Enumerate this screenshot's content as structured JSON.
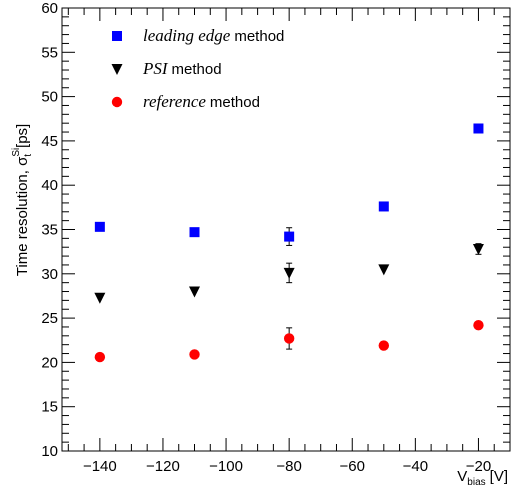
{
  "chart_data": {
    "type": "scatter",
    "xlabel_main": "V",
    "xlabel_sub": "bias",
    "xlabel_unit": "[V]",
    "ylabel_main": "Time resolution, σ",
    "ylabel_sub": "t",
    "ylabel_sup": "Si",
    "ylabel_unit": "[ps]",
    "xlim": [
      -152,
      -10
    ],
    "ylim": [
      10,
      60
    ],
    "xticks": [
      -140,
      -120,
      -100,
      -80,
      -60,
      -40,
      -20
    ],
    "xtick_labels": [
      "−140",
      "−120",
      "−100",
      "−80",
      "−60",
      "−40",
      "−20"
    ],
    "yticks": [
      10,
      15,
      20,
      25,
      30,
      35,
      40,
      45,
      50,
      55,
      60
    ],
    "ytick_labels": [
      "10",
      "15",
      "20",
      "25",
      "30",
      "35",
      "40",
      "45",
      "50",
      "55",
      "60"
    ],
    "grid": false,
    "legend_position": "top-left",
    "series": [
      {
        "name_italic": "leading edge",
        "name_suffix": "method",
        "marker": "square",
        "color": "#0000ff",
        "points": [
          {
            "x": -140,
            "y": 35.3,
            "err": 0.0
          },
          {
            "x": -110,
            "y": 34.7,
            "err": 0.0
          },
          {
            "x": -80,
            "y": 34.2,
            "err": 1.0
          },
          {
            "x": -50,
            "y": 37.6,
            "err": 0.0
          },
          {
            "x": -20,
            "y": 46.4,
            "err": 0.0
          }
        ]
      },
      {
        "name_italic": "PSI",
        "name_suffix": "method",
        "marker": "triangle-down",
        "color": "#000000",
        "points": [
          {
            "x": -140,
            "y": 27.3,
            "err": 0.0
          },
          {
            "x": -110,
            "y": 28.0,
            "err": 0.0
          },
          {
            "x": -80,
            "y": 30.1,
            "err": 1.1
          },
          {
            "x": -50,
            "y": 30.5,
            "err": 0.0
          },
          {
            "x": -20,
            "y": 32.8,
            "err": 0.6
          }
        ]
      },
      {
        "name_italic": "reference",
        "name_suffix": "method",
        "marker": "circle",
        "color": "#ff0000",
        "points": [
          {
            "x": -140,
            "y": 20.6,
            "err": 0.0
          },
          {
            "x": -110,
            "y": 20.9,
            "err": 0.0
          },
          {
            "x": -80,
            "y": 22.7,
            "err": 1.2
          },
          {
            "x": -50,
            "y": 21.9,
            "err": 0.0
          },
          {
            "x": -20,
            "y": 24.2,
            "err": 0.0
          }
        ]
      }
    ]
  }
}
